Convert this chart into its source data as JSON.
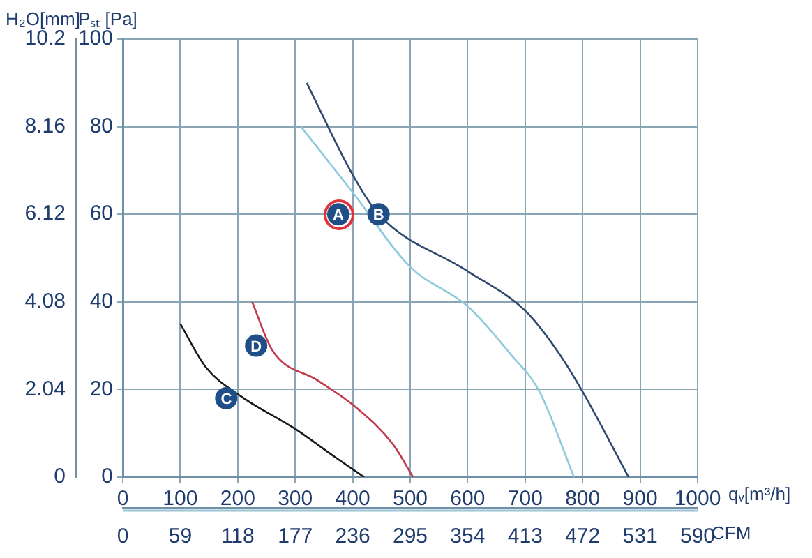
{
  "chart_data": {
    "type": "line",
    "xlabel": "qᵥ[m³/h]",
    "x2label": "CFM",
    "ylabel": "Pₛₜ [Pa]",
    "y2label": "H₂O[mm]",
    "xlim": [
      0,
      1000
    ],
    "xticks": [
      0,
      100,
      200,
      300,
      400,
      500,
      600,
      700,
      800,
      900,
      1000
    ],
    "x2lim": [
      0,
      590
    ],
    "x2ticks": [
      0,
      59,
      118,
      177,
      236,
      295,
      354,
      413,
      472,
      531,
      590
    ],
    "ylim": [
      0,
      100
    ],
    "yticks": [
      0,
      20,
      40,
      60,
      80,
      100
    ],
    "y2lim": [
      0,
      10.2
    ],
    "y2ticks": [
      0,
      2.04,
      4.08,
      6.12,
      8.16,
      10.2
    ],
    "grid": true,
    "marker": "none",
    "line_style": "solid",
    "series": [
      {
        "color": "#8ec9dc",
        "x": [
          310,
          400,
          500,
          600,
          675,
          725,
          785
        ],
        "values": [
          80,
          65,
          48,
          39,
          28,
          19.5,
          0
        ]
      },
      {
        "color": "#2d4a6e",
        "x": [
          320,
          400,
          445,
          600,
          700,
          755,
          800,
          880
        ],
        "values": [
          90,
          69,
          60,
          47,
          38,
          29,
          19.5,
          0
        ]
      },
      {
        "color": "#1a1a1a",
        "x": [
          100,
          145,
          205,
          300,
          370,
          420
        ],
        "values": [
          35,
          25,
          18.5,
          11,
          4.5,
          0
        ]
      },
      {
        "color": "#c0394a",
        "x": [
          225,
          260,
          340,
          405,
          470,
          505
        ],
        "values": [
          40,
          29,
          22,
          16,
          7.5,
          0
        ]
      }
    ],
    "annotations": [
      {
        "text": "A",
        "x": 375,
        "y": 60
      },
      {
        "text": "B",
        "x": 445,
        "y": 60
      },
      {
        "text": "C",
        "x": 180,
        "y": 18
      },
      {
        "text": "D",
        "x": 232,
        "y": 30
      }
    ]
  }
}
